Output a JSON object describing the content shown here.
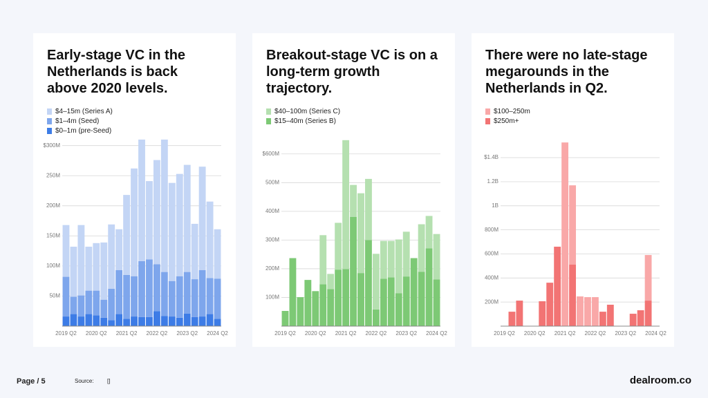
{
  "chart_data": [
    {
      "type": "stacked_bar",
      "title": "Early-stage VC in the Netherlands is back above 2020 levels.",
      "categories": [
        "2019 Q2",
        null,
        null,
        null,
        "2020 Q2",
        null,
        null,
        null,
        "2021 Q2",
        null,
        null,
        null,
        "2022 Q2",
        null,
        null,
        null,
        "2023 Q2",
        null,
        null,
        null,
        "2024 Q2"
      ],
      "series": [
        {
          "name": "$4–15m (Series A)",
          "color": "#c3d5f5",
          "values": [
            86,
            83,
            117,
            73,
            79,
            95,
            107,
            68,
            133,
            179,
            202,
            130,
            173,
            220,
            163,
            170,
            178,
            92,
            172,
            127,
            82
          ]
        },
        {
          "name": "$1–4m (Seed)",
          "color": "#7ea6ec",
          "values": [
            66,
            29,
            35,
            39,
            41,
            30,
            52,
            73,
            73,
            67,
            93,
            96,
            78,
            73,
            59,
            69,
            69,
            63,
            77,
            60,
            67
          ]
        },
        {
          "name": "$0–1m (pre-Seed)",
          "color": "#3d7ce6",
          "values": [
            16,
            20,
            16,
            20,
            18,
            14,
            10,
            20,
            12,
            16,
            15,
            15,
            25,
            17,
            16,
            14,
            21,
            15,
            16,
            20,
            12
          ]
        }
      ],
      "ylim": [
        0,
        310
      ],
      "yticks": [
        {
          "value": 50,
          "label": "50M"
        },
        {
          "value": 100,
          "label": "100M"
        },
        {
          "value": 150,
          "label": "150M"
        },
        {
          "value": 200,
          "label": "200M"
        },
        {
          "value": 250,
          "label": "250M"
        },
        {
          "value": 300,
          "label": "$300M"
        }
      ],
      "grid": true
    },
    {
      "type": "stacked_bar",
      "title": "Breakout-stage VC is on a long-term growth trajectory.",
      "categories": [
        "2019 Q2",
        null,
        null,
        null,
        "2020 Q2",
        null,
        null,
        null,
        "2021 Q2",
        null,
        null,
        null,
        "2022 Q2",
        null,
        null,
        null,
        "2023 Q2",
        null,
        null,
        null,
        "2024 Q2"
      ],
      "series": [
        {
          "name": "$40–100m (Series C)",
          "color": "#b5e0b0",
          "values": [
            0,
            0,
            0,
            0,
            0,
            171,
            53,
            163,
            449,
            111,
            278,
            213,
            194,
            132,
            127,
            187,
            156,
            0,
            166,
            113,
            158
          ]
        },
        {
          "name": "$15–40m (Series B)",
          "color": "#7dc975",
          "values": [
            53,
            237,
            101,
            161,
            122,
            146,
            129,
            197,
            199,
            381,
            185,
            300,
            58,
            165,
            170,
            115,
            173,
            237,
            189,
            271,
            163
          ]
        }
      ],
      "ylim": [
        0,
        650
      ],
      "yticks": [
        {
          "value": 100,
          "label": "100M"
        },
        {
          "value": 200,
          "label": "200M"
        },
        {
          "value": 300,
          "label": "300M"
        },
        {
          "value": 400,
          "label": "400M"
        },
        {
          "value": 500,
          "label": "500M"
        },
        {
          "value": 600,
          "label": "$600M"
        }
      ],
      "grid": true
    },
    {
      "type": "stacked_bar",
      "title": "There were no late-stage megarounds in the Netherlands in Q2.",
      "categories": [
        "2019 Q2",
        null,
        null,
        null,
        "2020 Q2",
        null,
        null,
        null,
        "2021 Q2",
        null,
        null,
        null,
        "2022 Q2",
        null,
        null,
        null,
        "2023 Q2",
        null,
        null,
        null,
        "2024 Q2"
      ],
      "series": [
        {
          "name": "$100–250m",
          "color": "#f9a8a8",
          "values": [
            0,
            0,
            0,
            0,
            0,
            0,
            0,
            0,
            1526,
            659,
            247,
            241,
            241,
            0,
            0,
            0,
            0,
            0,
            0,
            379,
            0
          ]
        },
        {
          "name": "$250m+",
          "color": "#f27474",
          "values": [
            0,
            120,
            212,
            0,
            0,
            207,
            361,
            660,
            0,
            511,
            0,
            0,
            0,
            120,
            178,
            0,
            0,
            103,
            132,
            212,
            0
          ]
        }
      ],
      "ylim": [
        0,
        1550
      ],
      "yticks": [
        {
          "value": 200,
          "label": "200M"
        },
        {
          "value": 400,
          "label": "400M"
        },
        {
          "value": 600,
          "label": "600M"
        },
        {
          "value": 800,
          "label": "800M"
        },
        {
          "value": 1000,
          "label": "1B"
        },
        {
          "value": 1200,
          "label": "1.2B"
        },
        {
          "value": 1400,
          "label": "$1.4B"
        }
      ],
      "grid": true
    }
  ],
  "footer": {
    "page": "Page / 5",
    "source_label": "Source:",
    "source": "[]",
    "brand": "dealroom.co"
  }
}
